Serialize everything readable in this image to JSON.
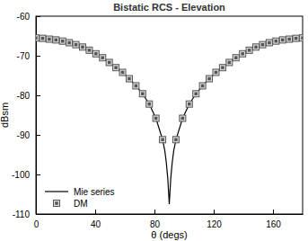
{
  "chart_data": {
    "type": "line",
    "title": "Bistatic RCS - Elevation",
    "x_label": "θ (degs)",
    "y_label": "dBsm",
    "xlim": [
      0,
      180
    ],
    "xticks": [
      0,
      40,
      80,
      120,
      160
    ],
    "ylim": [
      -110,
      -60
    ],
    "yticks": [
      -110,
      -100,
      -90,
      -80,
      -70,
      -60
    ],
    "grid": false,
    "legend": "lower left",
    "series": [
      {
        "name": "Mie series",
        "type": "line",
        "line_style": "solid",
        "color": "#000000",
        "x": [
          0,
          4.5,
          9,
          13.5,
          18,
          22.5,
          27,
          31.5,
          36,
          40.5,
          45,
          49.5,
          54,
          58.5,
          63,
          67.5,
          72,
          76.5,
          81,
          85.5,
          87,
          88,
          89,
          90,
          91,
          92,
          93,
          94.5,
          99,
          103.5,
          108,
          112.5,
          117,
          121.5,
          126,
          130.5,
          135,
          139.5,
          144,
          148.5,
          153,
          157.5,
          162,
          166.5,
          171,
          175.5,
          180
        ],
        "values": [
          -65.5,
          -65.6,
          -65.8,
          -66.0,
          -66.3,
          -66.7,
          -67.2,
          -67.8,
          -68.6,
          -69.5,
          -70.5,
          -71.7,
          -73.0,
          -74.2,
          -75.8,
          -77.6,
          -79.6,
          -82.2,
          -85.8,
          -91.2,
          -94.0,
          -97.0,
          -101.0,
          -107.5,
          -101.0,
          -97.0,
          -94.0,
          -91.2,
          -85.8,
          -82.2,
          -79.6,
          -77.6,
          -75.8,
          -74.2,
          -73.0,
          -71.7,
          -70.5,
          -69.5,
          -68.6,
          -67.8,
          -67.2,
          -66.7,
          -66.3,
          -66.0,
          -65.8,
          -65.6,
          -65.5
        ]
      },
      {
        "name": "DM",
        "type": "scatter",
        "marker": "square",
        "color": "#555555",
        "x": [
          0,
          4.5,
          9,
          13.5,
          18,
          22.5,
          27,
          31.5,
          36,
          40.5,
          45,
          49.5,
          54,
          58.5,
          63,
          67.5,
          72,
          76.5,
          81,
          85.5,
          94.5,
          99,
          103.5,
          108,
          112.5,
          117,
          121.5,
          126,
          130.5,
          135,
          139.5,
          144,
          148.5,
          153,
          157.5,
          162,
          166.5,
          171,
          175.5,
          180
        ],
        "values": [
          -65.5,
          -65.6,
          -65.8,
          -66.0,
          -66.3,
          -66.7,
          -67.2,
          -67.8,
          -68.6,
          -69.5,
          -70.5,
          -71.7,
          -73.0,
          -74.2,
          -75.8,
          -77.6,
          -79.6,
          -82.2,
          -85.8,
          -91.2,
          -91.2,
          -85.8,
          -82.2,
          -79.6,
          -77.6,
          -75.8,
          -74.2,
          -73.0,
          -71.7,
          -70.5,
          -69.5,
          -68.6,
          -67.8,
          -67.2,
          -66.7,
          -66.3,
          -66.0,
          -65.8,
          -65.6,
          -65.5
        ]
      }
    ]
  }
}
